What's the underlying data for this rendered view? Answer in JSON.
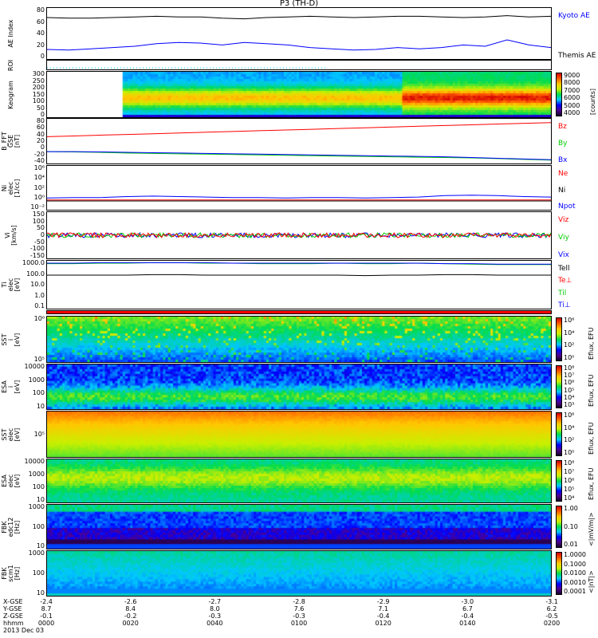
{
  "title": "P3 (TH-D)",
  "chart_data": {
    "type": "multi-panel-summary-plot",
    "title": "P3 (TH-D)",
    "date": "2013 Dec 03",
    "panels": [
      {
        "id": "ae",
        "ylabel": "AE Index",
        "yticks": [
          "80",
          "60",
          "40",
          "20",
          "0"
        ],
        "ylim": [
          0,
          80
        ],
        "legend": [
          {
            "text": "Kyoto AE",
            "color": "#0000ff"
          },
          {
            "text": "Themis AE",
            "color": "#000000"
          }
        ],
        "series": [
          {
            "name": "Kyoto AE",
            "color": "#0000ff",
            "values": [
              15,
              14,
              16,
              18,
              20,
              24,
              26,
              25,
              22,
              26,
              24,
              22,
              18,
              16,
              14,
              15,
              18,
              16,
              18,
              22,
              20,
              30,
              22,
              18
            ]
          },
          {
            "name": "Themis AE",
            "color": "#000000",
            "values": [
              65,
              64,
              64,
              65,
              66,
              67,
              66,
              66,
              64,
              63,
              65,
              66,
              67,
              66,
              65,
              66,
              67,
              67,
              66,
              65,
              66,
              68,
              66,
              67
            ]
          }
        ]
      },
      {
        "id": "roi",
        "ylabel": "ROI",
        "yticks": []
      },
      {
        "id": "keogram",
        "ylabel": "Keogram",
        "yticks": [
          "300",
          "250",
          "200",
          "150",
          "100",
          "50",
          "0"
        ],
        "ylim": [
          0,
          300
        ],
        "colorbar": {
          "ticks": [
            "9000",
            "8000",
            "7000",
            "6000",
            "5000",
            "4000"
          ],
          "unit": "[counts]"
        }
      },
      {
        "id": "bfft",
        "ylabel": "B_FFT\nGSE\n[nT]",
        "yticks": [
          "80",
          "60",
          "40",
          "20",
          "0",
          "-20",
          "-40"
        ],
        "ylim": [
          -40,
          80
        ],
        "legend": [
          {
            "text": "Bz",
            "color": "#ff0000"
          },
          {
            "text": "By",
            "color": "#00cc00"
          },
          {
            "text": "Bx",
            "color": "#0000ff"
          }
        ],
        "series": [
          {
            "name": "Bz",
            "color": "#ff0000",
            "values": [
              32,
              34,
              36,
              38,
              40,
              42,
              44,
              46,
              48,
              50,
              52,
              54,
              56,
              58,
              60,
              62,
              64,
              66,
              68,
              70
            ]
          },
          {
            "name": "By",
            "color": "#00cc00",
            "values": [
              -8,
              -9,
              -10,
              -12,
              -13,
              -14,
              -15,
              -16,
              -17,
              -18,
              -19,
              -20,
              -21,
              -22,
              -23,
              -24,
              -25,
              -27,
              -29,
              -31
            ]
          },
          {
            "name": "Bx",
            "color": "#0000ff",
            "values": [
              -8,
              -8,
              -9,
              -10,
              -11,
              -12,
              -13,
              -14,
              -15,
              -16,
              -17,
              -18,
              -19,
              -20,
              -21,
              -22,
              -24,
              -26,
              -28,
              -30
            ]
          }
        ]
      },
      {
        "id": "ni",
        "ylabel": "Ni\nelec\n[1/cc]",
        "yticks": [
          "10⁶",
          "10⁴",
          "10²",
          "10⁰",
          "10⁻²"
        ],
        "ylim": [
          -2,
          7
        ],
        "legend": [
          {
            "text": "Ne",
            "color": "#ff0000"
          },
          {
            "text": "Ni",
            "color": "#000000"
          },
          {
            "text": "Npot",
            "color": "#0000ff"
          }
        ],
        "series": [
          {
            "name": "Ne",
            "color": "#ff0000",
            "values": [
              0,
              0,
              0,
              0,
              0,
              0,
              0,
              0,
              0,
              0,
              0,
              0,
              0,
              0,
              0,
              0,
              0,
              0,
              0,
              0
            ]
          },
          {
            "name": "Ni",
            "color": "#000000",
            "values": [
              -0.2,
              -0.2,
              -0.2,
              -0.2,
              -0.2,
              -0.2,
              -0.2,
              -0.2,
              -0.2,
              -0.2,
              -0.2,
              -0.2,
              -0.2,
              -0.2,
              -0.2,
              -0.2,
              -0.2,
              -0.2,
              -0.2,
              -0.2
            ]
          },
          {
            "name": "Npot",
            "color": "#0000ff",
            "values": [
              0.4,
              0.5,
              0.5,
              0.7,
              0.8,
              0.7,
              0.6,
              0.5,
              0.5,
              0.4,
              0.5,
              0.5,
              0.4,
              0.5,
              0.6,
              0.9,
              1.0,
              0.9,
              0.7,
              0.6
            ]
          }
        ]
      },
      {
        "id": "vi",
        "ylabel": "Vi\n[km/s]",
        "yticks": [
          "150",
          "100",
          "50",
          "0",
          "-50",
          "-100",
          "-150"
        ],
        "ylim": [
          -200,
          200
        ],
        "legend": [
          {
            "text": "Viz",
            "color": "#ff0000"
          },
          {
            "text": "Viy",
            "color": "#00cc00"
          },
          {
            "text": "Vix",
            "color": "#0000ff"
          }
        ]
      },
      {
        "id": "ti",
        "ylabel": "Ti\nelec\n[eV]",
        "yticks": [
          "1000.0",
          "100.0",
          "10.0",
          "1.0",
          "0.1"
        ],
        "ylim": [
          -1.5,
          3.5
        ],
        "legend": [
          {
            "text": "Tell",
            "color": "#000000"
          },
          {
            "text": "Te⊥",
            "color": "#ff0000"
          },
          {
            "text": "Til",
            "color": "#00cc00"
          },
          {
            "text": "Ti⊥",
            "color": "#0000ff"
          }
        ],
        "series": [
          {
            "name": "Tell",
            "color": "#000000",
            "values": [
              2.0,
              2.0,
              2.0,
              2.0,
              2.05,
              2.05,
              2.0,
              2.0,
              2.0,
              2.0,
              2.0,
              2.0,
              1.95,
              2.0,
              2.0,
              2.05,
              2.05,
              2.0,
              2.0,
              2.0
            ]
          },
          {
            "name": "Til",
            "color": "#00cc00",
            "values": [
              3.2,
              3.2,
              3.25,
              3.25,
              3.3,
              3.3,
              3.25,
              3.25,
              3.2,
              3.2,
              3.2,
              3.25,
              3.2,
              3.2,
              3.25,
              3.2,
              3.15,
              3.1,
              3.1,
              3.1
            ]
          },
          {
            "name": "Ti⊥",
            "color": "#0000ff",
            "values": [
              3.25,
              3.25,
              3.3,
              3.3,
              3.3,
              3.3,
              3.3,
              3.25,
              3.25,
              3.25,
              3.25,
              3.25,
              3.25,
              3.25,
              3.25,
              3.2,
              3.2,
              3.15,
              3.15,
              3.15
            ]
          }
        ]
      },
      {
        "id": "sst_ion",
        "ylabel": "SST\ni\n[eV]",
        "yticks": [
          "10⁶",
          "10⁵"
        ],
        "colorbar": {
          "ticks": [
            "10⁶",
            "10⁴",
            "10²",
            "10⁰"
          ],
          "unit": "Eflux, EFU"
        }
      },
      {
        "id": "esa_ion",
        "ylabel": "ESA\ni\n[eV]",
        "yticks": [
          "10000",
          "1000",
          "100",
          "10"
        ],
        "colorbar": {
          "ticks": [
            "10⁸",
            "10⁷",
            "10⁶",
            "10⁵",
            "10⁴",
            "10³"
          ],
          "unit": "Eflux, EFU"
        }
      },
      {
        "id": "sst_elec",
        "ylabel": "SST\nelec\n[eV]",
        "yticks": [
          "10⁵"
        ],
        "colorbar": {
          "ticks": [
            "10⁶",
            "10⁴",
            "10²",
            "10⁰"
          ],
          "unit": "Eflux, EFU"
        }
      },
      {
        "id": "esa_elec",
        "ylabel": "ESA\nelec\n[eV]",
        "yticks": [
          "10000",
          "1000",
          "100",
          "10"
        ],
        "colorbar": {
          "ticks": [
            "10⁸",
            "10⁷",
            "10⁶",
            "10⁵",
            "10⁴"
          ],
          "unit": "Eflux, EFU"
        }
      },
      {
        "id": "fbk_edc12",
        "ylabel": "FBK\nedc12\n[Hz]",
        "yticks": [
          "1000",
          "100",
          "10"
        ],
        "colorbar": {
          "ticks": [
            "1.00",
            "0.10",
            "0.01"
          ],
          "unit": "<|mV/m|>"
        }
      },
      {
        "id": "fbk_scm1",
        "ylabel": "FBK\nscm1\n[Hz]",
        "yticks": [
          "1000",
          "100",
          "10"
        ],
        "colorbar": {
          "ticks": [
            "1.0000",
            "0.1000",
            "0.0100",
            "0.0010",
            "0.0001"
          ],
          "unit": "<|nT|>"
        }
      }
    ],
    "xaxis": {
      "row_labels": [
        "X-GSE",
        "Y-GSE",
        "Z-GSE",
        "hhmm"
      ],
      "columns": [
        {
          "x": "-2.4",
          "y": "8.7",
          "z": "-0.1",
          "t": "0000"
        },
        {
          "x": "-2.6",
          "y": "8.4",
          "z": "-0.2",
          "t": "0020"
        },
        {
          "x": "-2.7",
          "y": "8.0",
          "z": "-0.3",
          "t": "0040"
        },
        {
          "x": "-2.8",
          "y": "7.6",
          "z": "-0.3",
          "t": "0100"
        },
        {
          "x": "-2.9",
          "y": "7.1",
          "z": "-0.4",
          "t": "0120"
        },
        {
          "x": "-3.0",
          "y": "6.7",
          "z": "-0.4",
          "t": "0140"
        },
        {
          "x": "-3.1",
          "y": "6.2",
          "z": "-0.5",
          "t": "0200"
        }
      ]
    }
  }
}
